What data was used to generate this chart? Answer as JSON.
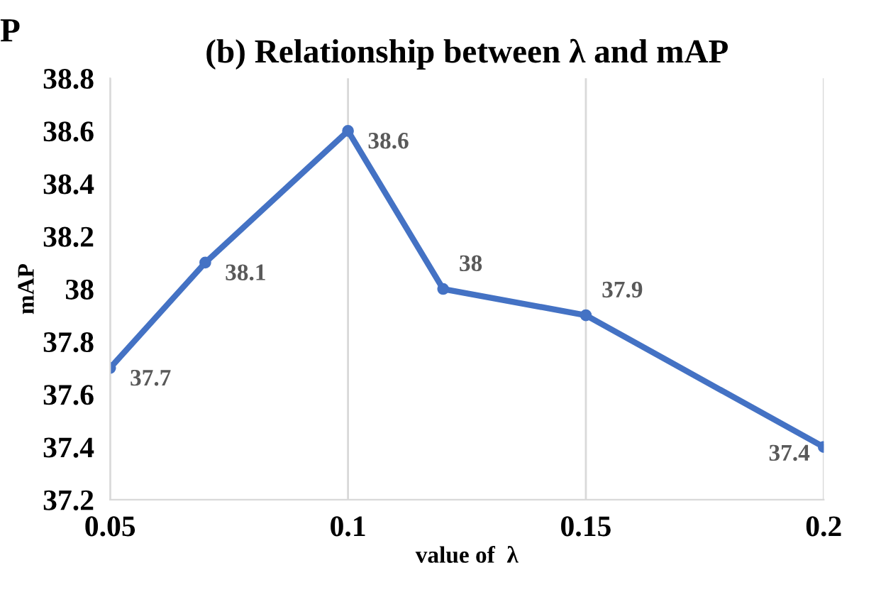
{
  "chart_data": {
    "type": "line",
    "title": "(b) Relationship between λ and mAP",
    "xlabel": "value of  λ",
    "ylabel": "mAP",
    "x": [
      0.05,
      0.07,
      0.1,
      0.12,
      0.15,
      0.2
    ],
    "series": [
      {
        "color": "#4472c4",
        "values": [
          37.7,
          38.1,
          38.6,
          38,
          37.9,
          37.4
        ]
      }
    ],
    "xlim": [
      0.05,
      0.2
    ],
    "xticks": [
      0.05,
      0.1,
      0.15,
      0.2
    ],
    "ylim": [
      37.2,
      38.8
    ],
    "yticks": [
      37.2,
      37.4,
      37.6,
      37.8,
      38,
      38.2,
      38.4,
      38.6,
      38.8
    ],
    "grid": "x",
    "marker": "circle",
    "line_style": "solid",
    "data_labels": true,
    "annotations": [
      "P"
    ]
  }
}
